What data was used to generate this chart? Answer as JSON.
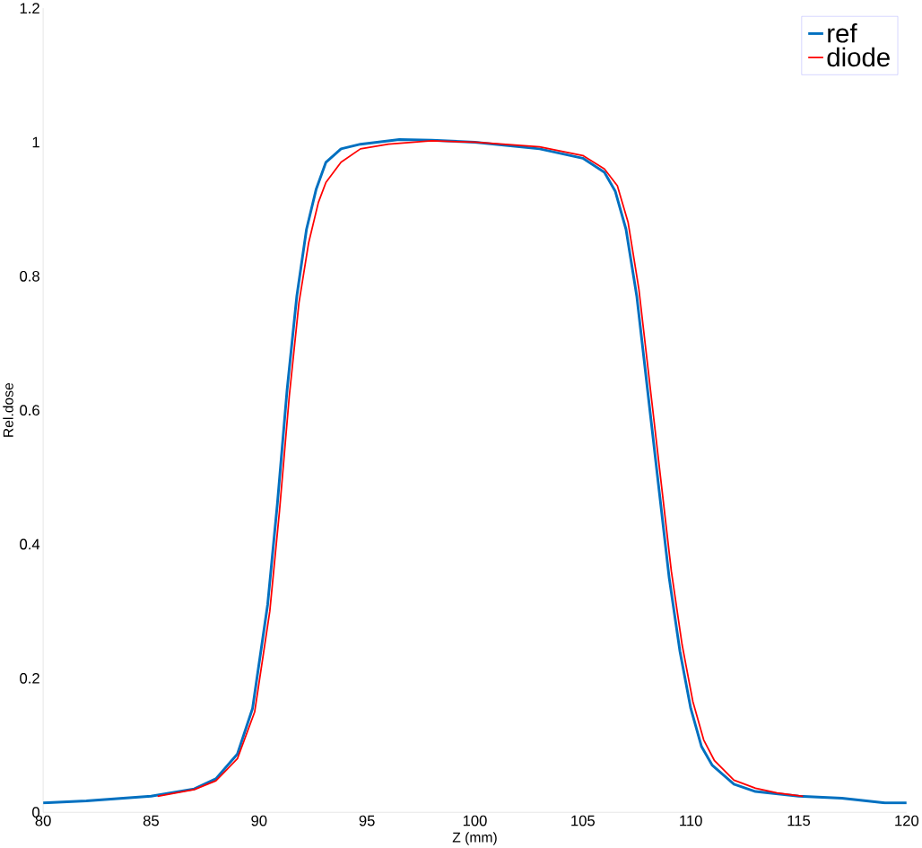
{
  "chart_data": {
    "type": "line",
    "xlabel": "Z (mm)",
    "ylabel": "Rel.dose",
    "xlim": [
      80,
      120
    ],
    "ylim": [
      0,
      1.2
    ],
    "xticks": [
      80,
      85,
      90,
      95,
      100,
      105,
      110,
      115,
      120
    ],
    "yticks": [
      0,
      0.2,
      0.4,
      0.6,
      0.8,
      1,
      1.2
    ],
    "grid": false,
    "legend": "top right",
    "marker": "none",
    "line_style": "solid",
    "series": [
      {
        "name": "ref",
        "color": "#0070c0",
        "x": [
          80,
          82,
          85,
          87,
          88,
          89,
          89.7,
          90.4,
          90.85,
          91.3,
          91.75,
          92.2,
          92.65,
          93.1,
          93.8,
          94.7,
          96.5,
          98,
          100,
          103,
          105,
          106,
          106.5,
          107,
          107.5,
          108,
          108.5,
          109,
          109.5,
          110,
          110.5,
          111,
          112,
          113,
          115,
          117,
          119,
          120
        ],
        "values": [
          0.014,
          0.017,
          0.024,
          0.035,
          0.05,
          0.087,
          0.155,
          0.31,
          0.46,
          0.63,
          0.77,
          0.87,
          0.93,
          0.97,
          0.99,
          0.997,
          1.004,
          1.003,
          1.0,
          0.99,
          0.976,
          0.955,
          0.927,
          0.87,
          0.77,
          0.63,
          0.49,
          0.35,
          0.24,
          0.155,
          0.098,
          0.07,
          0.042,
          0.031,
          0.024,
          0.021,
          0.014,
          0.014
        ]
      },
      {
        "name": "diode",
        "color": "#ff0000",
        "x": [
          85.3,
          87,
          88,
          89,
          89.8,
          90.5,
          90.95,
          91.4,
          91.85,
          92.3,
          92.75,
          93.1,
          93.8,
          94.7,
          96,
          98,
          100,
          103,
          105,
          106,
          106.6,
          107.1,
          107.6,
          108.1,
          108.6,
          109.1,
          109.6,
          110.1,
          110.6,
          111.1,
          112,
          113,
          114,
          115.2
        ],
        "values": [
          0.024,
          0.034,
          0.047,
          0.08,
          0.15,
          0.3,
          0.45,
          0.62,
          0.76,
          0.85,
          0.91,
          0.94,
          0.97,
          0.99,
          0.997,
          1.002,
          1.0,
          0.993,
          0.98,
          0.96,
          0.935,
          0.88,
          0.78,
          0.64,
          0.5,
          0.36,
          0.25,
          0.165,
          0.108,
          0.077,
          0.048,
          0.036,
          0.029,
          0.024
        ]
      }
    ]
  }
}
